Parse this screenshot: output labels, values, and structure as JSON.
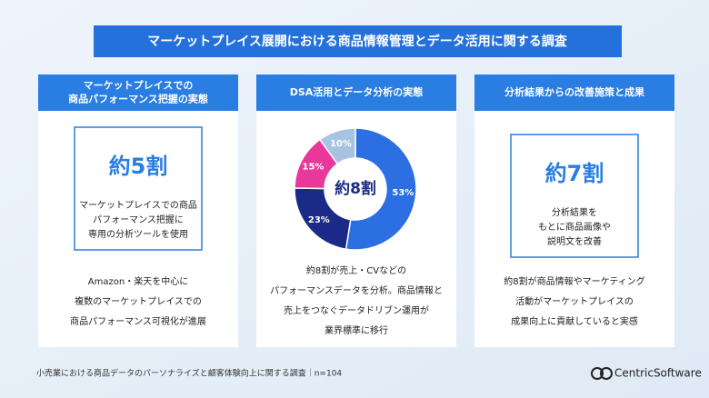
{
  "title": "マーケットプレイス展開における商品情報管理とデータ活用に関する調査",
  "cards": [
    {
      "header_lines": [
        "マーケットプレイスでの",
        "商品パフォーマンス把握の実態"
      ],
      "stat": "約5割",
      "box_lines": [
        "マーケットプレイスでの商品",
        "パフォーマンス把握に",
        "専用の分析ツールを使用"
      ],
      "body_lines": [
        "Amazon・楽天を中心に",
        "複数のマーケットプレイスでの",
        "商品パフォーマンス可視化が進展"
      ]
    },
    {
      "header_lines": [
        "DSA活用とデータ分析の実態"
      ],
      "body_lines": [
        "約8割が売上・CVなどの",
        "パフォーマンスデータを分析。商品情報と",
        "売上をつなぐデータドリブン運用が",
        "業界標準に移行"
      ]
    },
    {
      "header_lines": [
        "分析結果からの改善施策と成果"
      ],
      "stat": "約7割",
      "box_lines": [
        "分析結果を",
        "もとに商品画像や",
        "説明文を改善"
      ],
      "body_lines": [
        "約8割が商品情報やマーケティング",
        "活動がマーケットプレイスの",
        "成果向上に貢献していると実感"
      ]
    }
  ],
  "chart_data": {
    "type": "donut",
    "center_label": "約8割",
    "values": [
      53,
      23,
      15,
      10
    ],
    "value_labels": [
      "53%",
      "23%",
      "15%",
      "10%"
    ],
    "colors": [
      "#2b6fe3",
      "#1b2a86",
      "#e8389b",
      "#a8c3e2"
    ]
  },
  "footer": "小売業における商品データのパーソナライズと顧客体験向上に関する調査｜n=104",
  "logo": "CentricSoftware"
}
